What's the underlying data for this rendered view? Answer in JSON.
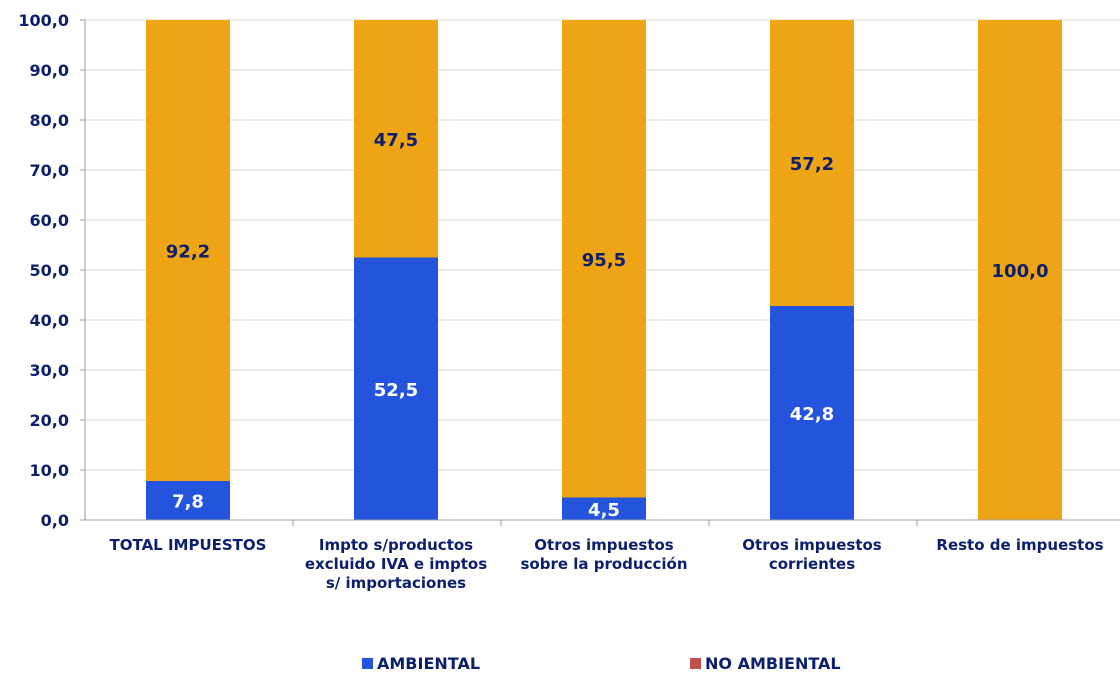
{
  "chart_data": {
    "type": "bar",
    "stacked": true,
    "categories": [
      [
        "TOTAL IMPUESTOS"
      ],
      [
        "Impto s/productos",
        "excluido IVA e imptos",
        "s/ importaciones"
      ],
      [
        "Otros impuestos",
        "sobre la producción"
      ],
      [
        "Otros impuestos",
        "corrientes"
      ],
      [
        "Resto de impuestos"
      ]
    ],
    "series": [
      {
        "name": "AMBIENTAL",
        "values": [
          7.8,
          52.5,
          4.5,
          42.8,
          0.0
        ],
        "labels": [
          "7,8",
          "52,5",
          "4,5",
          "42,8",
          ""
        ]
      },
      {
        "name": "NO AMBIENTAL",
        "values": [
          92.2,
          47.5,
          95.5,
          57.2,
          100.0
        ],
        "labels": [
          "92,2",
          "47,5",
          "95,5",
          "57,2",
          "100,0"
        ]
      }
    ],
    "yticks": [
      "0,0",
      "10,0",
      "20,0",
      "30,0",
      "40,0",
      "50,0",
      "60,0",
      "70,0",
      "80,0",
      "90,0",
      "100,0"
    ],
    "ylim": [
      0,
      100
    ],
    "grid": true,
    "legend_position": "bottom",
    "colors": {
      "bars": [
        "#2454db",
        "#eda515"
      ],
      "legend_markers": [
        "#2454db",
        "#c0504d"
      ],
      "labels": [
        "#ffffff",
        "#0b1f6e"
      ],
      "text": "#0b1f6e",
      "grid": "#d9d9d9",
      "axis": "#9e9e9e"
    }
  }
}
